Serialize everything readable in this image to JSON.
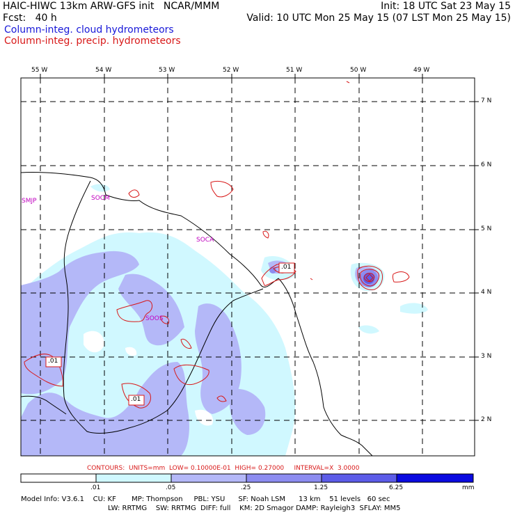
{
  "header": {
    "line1_left": "HAIC-HIWC 13km ARW-GFS init   NCAR/MMM",
    "line1_right": "Init: 18 UTC Sat 23 May 15",
    "line2_left": "Fcst:   40 h",
    "line2_right": "Valid: 10 UTC Mon 25 May 15 (07 LST Mon 25 May 15)",
    "field1": "Column-integ. cloud hydrometeors",
    "field2": "Column-integ. precip. hydrometeors"
  },
  "axes": {
    "lon_labels": [
      "55 W",
      "54 W",
      "53 W",
      "52 W",
      "51 W",
      "50 W",
      "49 W"
    ],
    "lat_labels": [
      "7 N",
      "6 N",
      "5 N",
      "4 N",
      "3 N",
      "2 N"
    ]
  },
  "places": [
    "SMJP",
    "SOCM",
    "SOCA",
    "SOOS"
  ],
  "contour_labels": [
    ".01",
    ".01",
    ".01"
  ],
  "contour_info": "CONTOURS:  UNITS=mm  LOW= 0.10000E-01  HIGH= 0.27000     INTERVAL=X  3.0000",
  "colorbar": {
    "ticks": [
      ".01",
      ".05",
      ".25",
      "1.25",
      "6.25"
    ],
    "unit": "mm",
    "colors": [
      "#ffffff",
      "#d0f8ff",
      "#b4b8f8",
      "#8c8cf0",
      "#5c5ce8",
      "#3030e0",
      "#0a0ae0"
    ]
  },
  "model_info": {
    "line1": "Model Info: V3.6.1    CU: KF       MP: Thompson     PBL: YSU      SF: Noah LSM      13 km    51 levels   60 sec",
    "line2": "LW: RRTMG    SW: RRTMG  DIFF: full    KM: 2D Smagor DAMP: Rayleigh3  SFLAY: MM5"
  },
  "colors": {
    "cloud_line": "#1818d8",
    "precip_line": "#d81818",
    "label_magenta": "#c000c0"
  }
}
